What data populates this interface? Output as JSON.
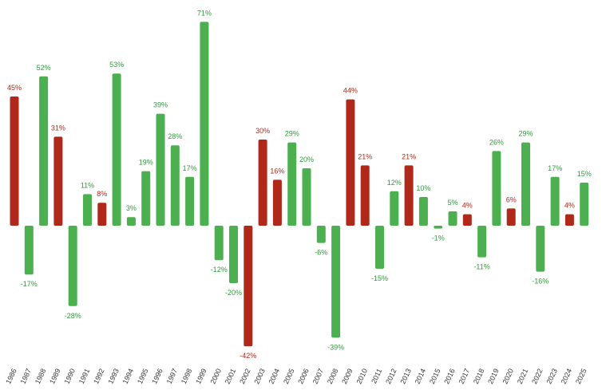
{
  "colors": {
    "positive": "#4caf50",
    "negative_red": "#b0281a",
    "label_green": "#2e9a3a",
    "label_red": "#b0281a",
    "zero_line": "#4caf50",
    "tick_text": "#333333"
  },
  "chart_data": {
    "type": "bar",
    "title": "",
    "xlabel": "",
    "ylabel": "",
    "ylim": [
      -42,
      71
    ],
    "grid": false,
    "legend": "none",
    "categories": [
      "1986",
      "1987",
      "1988",
      "1989",
      "1990",
      "1991",
      "1992",
      "1993",
      "1994",
      "1995",
      "1996",
      "1997",
      "1998",
      "1999",
      "2000",
      "2001",
      "2002",
      "2003",
      "2004",
      "2005",
      "2006",
      "2007",
      "2008",
      "2009",
      "2010",
      "2011",
      "2012",
      "2013",
      "2014",
      "2015",
      "2016",
      "2017",
      "2018",
      "2019",
      "2020",
      "2021",
      "2022",
      "2023",
      "2024",
      "2025"
    ],
    "values": [
      45,
      -17,
      52,
      31,
      -28,
      11,
      8,
      53,
      3,
      19,
      39,
      28,
      17,
      71,
      -12,
      -20,
      -42,
      30,
      16,
      29,
      20,
      -6,
      -39,
      44,
      21,
      -15,
      12,
      21,
      10,
      -1,
      5,
      4,
      -11,
      26,
      6,
      29,
      -16,
      17,
      4,
      15
    ],
    "labels": [
      "45%",
      "-17%",
      "52%",
      "31%",
      "-28%",
      "11%",
      "8%",
      "53%",
      "3%",
      "19%",
      "39%",
      "28%",
      "17%",
      "71%",
      "-12%",
      "-20%",
      "-42%",
      "30%",
      "16%",
      "29%",
      "20%",
      "-6%",
      "-39%",
      "44%",
      "21%",
      "-15%",
      "12%",
      "21%",
      "10%",
      "-1%",
      "5%",
      "4%",
      "-11%",
      "26%",
      "6%",
      "29%",
      "-16%",
      "17%",
      "4%",
      "15%"
    ],
    "bar_colors": [
      "red",
      "green",
      "green",
      "red",
      "green",
      "green",
      "red",
      "green",
      "green",
      "green",
      "green",
      "green",
      "green",
      "green",
      "green",
      "green",
      "red",
      "red",
      "red",
      "green",
      "green",
      "green",
      "green",
      "red",
      "red",
      "green",
      "green",
      "red",
      "green",
      "green",
      "green",
      "red",
      "green",
      "green",
      "red",
      "green",
      "green",
      "green",
      "red",
      "green"
    ]
  }
}
